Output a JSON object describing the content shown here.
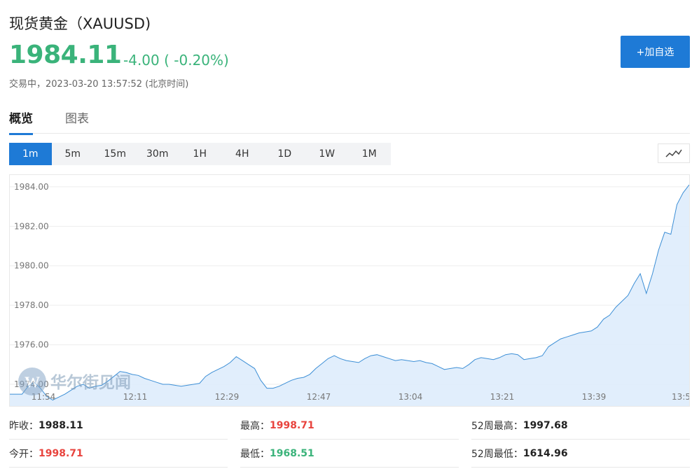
{
  "header": {
    "title": "现货黄金（XAUUSD)",
    "price": "1984.11",
    "change": "-4.00 ( -0.20%)",
    "status": "交易中，2023-03-20 13:57:52 (北京时间)",
    "add_button": "+加自选"
  },
  "tabs": [
    "概览",
    "图表"
  ],
  "periods": [
    "1m",
    "5m",
    "15m",
    "30m",
    "1H",
    "4H",
    "1D",
    "1W",
    "1M"
  ],
  "active_period": "1m",
  "watermark": "华尔街见闻",
  "colors": {
    "up": "#3ab37a",
    "down": "#e8433d",
    "accent": "#1e7ad6",
    "line": "#3d8fd6",
    "fill": "#dcebfb"
  },
  "chart_data": {
    "type": "area",
    "x_tick_labels": [
      "11:54",
      "12:11",
      "12:29",
      "12:47",
      "13:04",
      "13:21",
      "13:39",
      "13:5"
    ],
    "y_tick_labels": [
      "1984.00",
      "1982.00",
      "1980.00",
      "1978.00",
      "1976.00",
      "1974.00"
    ],
    "ylim": [
      1972.9,
      1984.6
    ],
    "grid": true,
    "xlabel": "",
    "ylabel": "",
    "values": [
      1973.5,
      1973.5,
      1973.5,
      1973.9,
      1974.1,
      1973.8,
      1973.4,
      1973.2,
      1973.35,
      1973.5,
      1973.7,
      1973.9,
      1974.0,
      1973.8,
      1973.9,
      1973.95,
      1974.15,
      1974.4,
      1974.65,
      1974.6,
      1974.5,
      1974.45,
      1974.3,
      1974.2,
      1974.1,
      1974.0,
      1974.0,
      1973.95,
      1973.9,
      1973.95,
      1974.0,
      1974.05,
      1974.4,
      1974.6,
      1974.75,
      1974.9,
      1975.1,
      1975.4,
      1975.2,
      1975.0,
      1974.8,
      1974.2,
      1973.8,
      1973.8,
      1973.9,
      1974.05,
      1974.2,
      1974.3,
      1974.35,
      1974.5,
      1974.8,
      1975.05,
      1975.3,
      1975.45,
      1975.3,
      1975.2,
      1975.15,
      1975.1,
      1975.3,
      1975.45,
      1975.5,
      1975.4,
      1975.3,
      1975.2,
      1975.25,
      1975.2,
      1975.15,
      1975.2,
      1975.1,
      1975.05,
      1974.9,
      1974.75,
      1974.8,
      1974.85,
      1974.8,
      1975.0,
      1975.25,
      1975.35,
      1975.3,
      1975.25,
      1975.35,
      1975.5,
      1975.55,
      1975.5,
      1975.25,
      1975.3,
      1975.35,
      1975.45,
      1975.9,
      1976.1,
      1976.3,
      1976.4,
      1976.5,
      1976.6,
      1976.65,
      1976.7,
      1976.9,
      1977.3,
      1977.5,
      1977.9,
      1978.2,
      1978.5,
      1979.1,
      1979.6,
      1978.6,
      1979.6,
      1980.8,
      1981.7,
      1981.6,
      1983.1,
      1983.7,
      1984.1
    ]
  },
  "stats": [
    {
      "label": "昨收：",
      "value": "1988.11",
      "color": "dark"
    },
    {
      "label": "最高：",
      "value": "1998.71",
      "color": "red"
    },
    {
      "label": "52周最高：",
      "value": "1997.68",
      "color": "dark"
    },
    {
      "label": "今开：",
      "value": "1998.71",
      "color": "red"
    },
    {
      "label": "最低：",
      "value": "1968.51",
      "color": "green"
    },
    {
      "label": "52周最低：",
      "value": "1614.96",
      "color": "dark"
    }
  ]
}
